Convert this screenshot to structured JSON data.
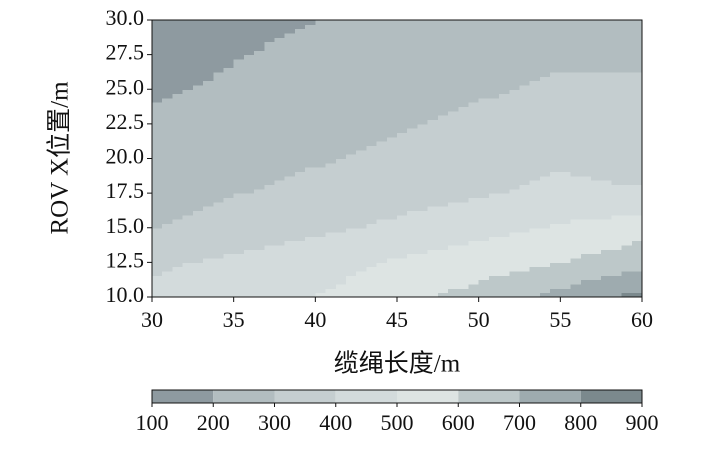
{
  "chart_data": {
    "type": "contour",
    "xlabel": "缆绳长度/m",
    "ylabel": "ROV X位置/m",
    "x": [
      30,
      35,
      40,
      45,
      50,
      55,
      60
    ],
    "y": [
      10,
      12.5,
      15,
      17.5,
      20,
      22.5,
      25,
      27.5,
      30
    ],
    "z": [
      [
        420,
        460,
        500,
        560,
        640,
        730,
        840
      ],
      [
        380,
        420,
        460,
        510,
        550,
        600,
        660
      ],
      [
        300,
        340,
        380,
        420,
        470,
        510,
        560
      ],
      [
        260,
        295,
        330,
        360,
        390,
        420,
        410
      ],
      [
        230,
        260,
        290,
        320,
        350,
        390,
        360
      ],
      [
        210,
        235,
        260,
        290,
        320,
        340,
        330
      ],
      [
        190,
        215,
        240,
        265,
        290,
        310,
        300
      ],
      [
        160,
        195,
        220,
        245,
        270,
        290,
        300
      ],
      [
        140,
        180,
        200,
        225,
        250,
        270,
        300
      ]
    ],
    "levels": [
      100,
      200,
      300,
      400,
      500,
      600,
      700,
      800,
      900
    ],
    "colors": [
      "#8e9aa0",
      "#b2bdc0",
      "#c5ced0",
      "#d3dbdc",
      "#dde4e3",
      "#bdc8c9",
      "#9eabaf",
      "#7b898d"
    ],
    "xlim": [
      30,
      60
    ],
    "ylim": [
      10,
      30
    ],
    "xticks": [
      30,
      35,
      40,
      45,
      50,
      55,
      60
    ],
    "yticks": [
      {
        "value": 10,
        "label": "10.0"
      },
      12.5,
      {
        "value": 15,
        "label": "15.0"
      },
      17.5,
      {
        "value": 20,
        "label": "20.0"
      },
      22.5,
      {
        "value": 25,
        "label": "25.0"
      },
      27.5,
      {
        "value": 30,
        "label": "30.0"
      }
    ]
  }
}
